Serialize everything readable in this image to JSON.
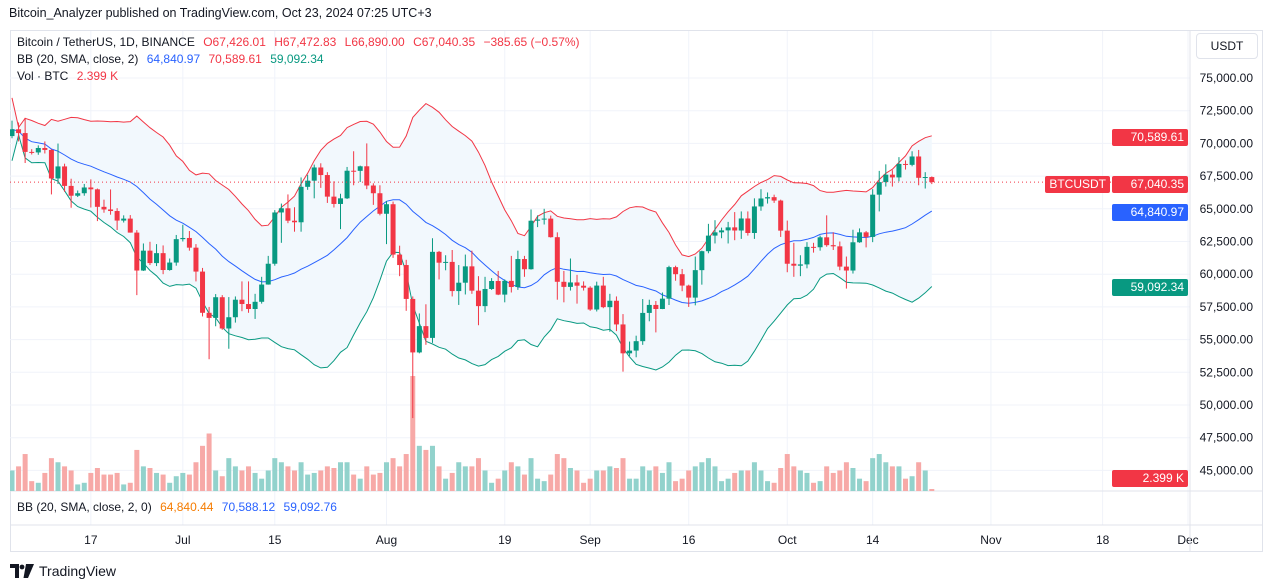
{
  "publisher_line": "Bitcoin_Analyzer published on TradingView.com, Oct 23, 2024 07:25 UTC+3",
  "legend": {
    "symbol": "Bitcoin / TetherUS, 1D, BINANCE",
    "open": "O67,426.01",
    "high": "H67,472.83",
    "low": "L66,890.00",
    "close": "C67,040.35",
    "change": "−385.65 (−0.57%)",
    "bb_label": "BB (20, SMA, close, 2)",
    "bb_basis": "64,840.97",
    "bb_upper": "70,589.61",
    "bb_lower": "59,092.34",
    "vol_label": "Vol · BTC",
    "vol_value": "2.399 K"
  },
  "lower_pane": {
    "label": "BB (20, SMA, close, 2, 0)",
    "v1": "64,840.44",
    "v2": "70,588.12",
    "v3": "59,092.76"
  },
  "currency_button": "USDT",
  "price_labels": {
    "upper": "70,589.61",
    "symbol": "BTCUSDT",
    "last": "67,040.35",
    "basis": "64,840.97",
    "lower": "59,092.34",
    "volume": "2.399 K"
  },
  "footer": {
    "brand": "TradingView"
  },
  "colors": {
    "up": "#089981",
    "down": "#f23645",
    "bb_upper": "#f23645",
    "bb_basis": "#2962ff",
    "bb_lower": "#089981",
    "band_fill": "#f2f8fd"
  },
  "chart_data": {
    "type": "candlestick",
    "symbol": "BTCUSDT",
    "start_date": "2024-06-05",
    "interval": "1D",
    "ylim": [
      44000,
      77500
    ],
    "y_ticks": [
      "75,000.00",
      "72,500.00",
      "70,000.00",
      "67,500.00",
      "65,000.00",
      "62,500.00",
      "60,000.00",
      "57,500.00",
      "55,000.00",
      "52,500.00",
      "50,000.00",
      "47,500.00",
      "45,000.00"
    ],
    "x_ticks": [
      {
        "label": "17",
        "date": "2024-06-17"
      },
      {
        "label": "Jul",
        "date": "2024-07-01"
      },
      {
        "label": "15",
        "date": "2024-07-15"
      },
      {
        "label": "Aug",
        "date": "2024-08-01"
      },
      {
        "label": "19",
        "date": "2024-08-19"
      },
      {
        "label": "Sep",
        "date": "2024-09-01"
      },
      {
        "label": "16",
        "date": "2024-09-16"
      },
      {
        "label": "Oct",
        "date": "2024-10-01"
      },
      {
        "label": "14",
        "date": "2024-10-14"
      },
      {
        "label": "Nov",
        "date": "2024-11-01"
      },
      {
        "label": "18",
        "date": "2024-11-18"
      },
      {
        "label": "Dec",
        "date": "2024-12-01"
      }
    ],
    "ohlc": [
      [
        70560,
        71740,
        70390,
        71080
      ],
      [
        71080,
        71600,
        70150,
        70790
      ],
      [
        70790,
        71950,
        68500,
        69350
      ],
      [
        69350,
        69560,
        69150,
        69310
      ],
      [
        69310,
        69850,
        69130,
        69650
      ],
      [
        69650,
        70150,
        69230,
        69500
      ],
      [
        69500,
        69560,
        66100,
        67320
      ],
      [
        67320,
        69990,
        66900,
        68240
      ],
      [
        68240,
        68450,
        66300,
        66750
      ],
      [
        66750,
        67300,
        65080,
        66000
      ],
      [
        66000,
        66400,
        65900,
        66190
      ],
      [
        66190,
        66900,
        66000,
        66630
      ],
      [
        66630,
        67250,
        65100,
        66490
      ],
      [
        66490,
        66550,
        64060,
        65150
      ],
      [
        65150,
        65700,
        64700,
        64950
      ],
      [
        64950,
        66480,
        64550,
        64830
      ],
      [
        64830,
        65050,
        63380,
        64100
      ],
      [
        64100,
        64500,
        63950,
        64250
      ],
      [
        64250,
        64520,
        63180,
        63180
      ],
      [
        63180,
        63370,
        58400,
        60280
      ],
      [
        60280,
        62350,
        60250,
        61800
      ],
      [
        61800,
        62480,
        60700,
        60850
      ],
      [
        60850,
        62300,
        60620,
        61610
      ],
      [
        61610,
        62200,
        60000,
        60320
      ],
      [
        60320,
        61200,
        60270,
        60890
      ],
      [
        60890,
        63000,
        60650,
        62680
      ],
      [
        62680,
        63780,
        62500,
        62770
      ],
      [
        62770,
        63300,
        61800,
        62030
      ],
      [
        62030,
        62300,
        59450,
        60200
      ],
      [
        60200,
        60480,
        56770,
        57050
      ],
      [
        57050,
        57500,
        53500,
        56660
      ],
      [
        56660,
        58480,
        56020,
        58240
      ],
      [
        58240,
        58400,
        55750,
        55850
      ],
      [
        55850,
        58250,
        54300,
        56710
      ],
      [
        56710,
        58300,
        56300,
        58050
      ],
      [
        58050,
        59450,
        57170,
        57720
      ],
      [
        57720,
        59450,
        57050,
        57340
      ],
      [
        57340,
        58500,
        56580,
        57890
      ],
      [
        57890,
        59800,
        57750,
        59210
      ],
      [
        59210,
        61400,
        59200,
        60800
      ],
      [
        60800,
        64900,
        60650,
        64720
      ],
      [
        64720,
        65400,
        62400,
        65040
      ],
      [
        65040,
        66100,
        63900,
        64090
      ],
      [
        64090,
        65120,
        63250,
        63970
      ],
      [
        63970,
        67400,
        63250,
        66680
      ],
      [
        66680,
        67600,
        66450,
        67150
      ],
      [
        67150,
        68380,
        65800,
        68160
      ],
      [
        68160,
        68480,
        66600,
        67580
      ],
      [
        67580,
        67800,
        65450,
        65930
      ],
      [
        65930,
        67100,
        65100,
        65370
      ],
      [
        65370,
        66150,
        63450,
        65800
      ],
      [
        65800,
        68200,
        65750,
        67910
      ],
      [
        67910,
        69400,
        66800,
        67900
      ],
      [
        67900,
        68300,
        67050,
        68250
      ],
      [
        68250,
        70000,
        66500,
        66780
      ],
      [
        66780,
        66950,
        65300,
        66190
      ],
      [
        66190,
        66800,
        64500,
        64620
      ],
      [
        64620,
        65600,
        62300,
        65350
      ],
      [
        65350,
        65550,
        61250,
        61500
      ],
      [
        61500,
        62180,
        59850,
        60700
      ],
      [
        60700,
        61100,
        57200,
        58110
      ],
      [
        58110,
        58300,
        49000,
        54020
      ],
      [
        54020,
        57000,
        53950,
        56030
      ],
      [
        56030,
        57700,
        54600,
        55130
      ],
      [
        55130,
        62750,
        54750,
        61710
      ],
      [
        61710,
        61780,
        59600,
        60880
      ],
      [
        60880,
        61450,
        60300,
        60940
      ],
      [
        60940,
        61850,
        58300,
        58710
      ],
      [
        58710,
        60700,
        57650,
        59350
      ],
      [
        59350,
        61500,
        58450,
        60600
      ],
      [
        60600,
        61800,
        58500,
        58740
      ],
      [
        58740,
        59850,
        56100,
        57560
      ],
      [
        57560,
        59800,
        57100,
        58870
      ],
      [
        58870,
        59700,
        58800,
        59480
      ],
      [
        59480,
        60250,
        58400,
        58440
      ],
      [
        58440,
        59600,
        57850,
        59490
      ],
      [
        59490,
        61400,
        58600,
        59020
      ],
      [
        59020,
        61800,
        58800,
        61160
      ],
      [
        61160,
        61400,
        59800,
        60380
      ],
      [
        60380,
        64950,
        60350,
        64090
      ],
      [
        64090,
        64500,
        63600,
        64180
      ],
      [
        64180,
        65000,
        63800,
        64250
      ],
      [
        64250,
        64480,
        62800,
        62830
      ],
      [
        62830,
        63200,
        58050,
        59420
      ],
      [
        59420,
        60250,
        57850,
        59030
      ],
      [
        59030,
        61200,
        58750,
        59370
      ],
      [
        59370,
        59950,
        57750,
        59120
      ],
      [
        59120,
        59450,
        58750,
        58970
      ],
      [
        58970,
        59080,
        57200,
        57300
      ],
      [
        57300,
        59430,
        57150,
        59130
      ],
      [
        59130,
        59800,
        57400,
        57480
      ],
      [
        57480,
        58500,
        55600,
        57970
      ],
      [
        57970,
        58300,
        55650,
        56160
      ],
      [
        56160,
        56950,
        52550,
        53950
      ],
      [
        53950,
        54850,
        53750,
        54160
      ],
      [
        54160,
        55300,
        53650,
        54880
      ],
      [
        54880,
        58100,
        54600,
        57040
      ],
      [
        57040,
        58050,
        56400,
        57650
      ],
      [
        57650,
        57950,
        55550,
        57340
      ],
      [
        57340,
        58600,
        57330,
        58130
      ],
      [
        58130,
        60650,
        57650,
        60540
      ],
      [
        60540,
        60650,
        59500,
        60000
      ],
      [
        60000,
        60400,
        58700,
        59130
      ],
      [
        59130,
        59200,
        57500,
        58210
      ],
      [
        58210,
        61350,
        57620,
        60310
      ],
      [
        60310,
        61800,
        59200,
        61760
      ],
      [
        61760,
        63850,
        61600,
        62950
      ],
      [
        62950,
        64130,
        62350,
        63200
      ],
      [
        63200,
        63560,
        62750,
        63350
      ],
      [
        63350,
        64000,
        62350,
        63580
      ],
      [
        63580,
        64750,
        62600,
        63340
      ],
      [
        63340,
        64800,
        62700,
        64260
      ],
      [
        64260,
        64800,
        62950,
        63150
      ],
      [
        63150,
        65800,
        62700,
        65180
      ],
      [
        65180,
        66500,
        64850,
        65790
      ],
      [
        65790,
        66250,
        65400,
        65890
      ],
      [
        65890,
        66080,
        65450,
        65630
      ],
      [
        65630,
        65700,
        62850,
        63330
      ],
      [
        63330,
        64100,
        60150,
        60800
      ],
      [
        60800,
        62400,
        59800,
        60650
      ],
      [
        60650,
        61450,
        59850,
        60750
      ],
      [
        60750,
        62450,
        60450,
        62090
      ],
      [
        62090,
        62400,
        61650,
        62060
      ],
      [
        62060,
        62950,
        61800,
        62820
      ],
      [
        62820,
        64500,
        62100,
        62220
      ],
      [
        62220,
        63200,
        61850,
        62130
      ],
      [
        62130,
        62500,
        60300,
        60580
      ],
      [
        60580,
        61350,
        58900,
        60280
      ],
      [
        60280,
        63400,
        60050,
        62440
      ],
      [
        62440,
        63500,
        62400,
        63200
      ],
      [
        63200,
        63300,
        62050,
        62850
      ],
      [
        62850,
        66500,
        62450,
        66080
      ],
      [
        66080,
        67900,
        64800,
        67040
      ],
      [
        67040,
        68400,
        66700,
        67610
      ],
      [
        67610,
        67950,
        66700,
        67400
      ],
      [
        67400,
        68950,
        67100,
        68430
      ],
      [
        68430,
        68700,
        68000,
        68360
      ],
      [
        68360,
        69400,
        68250,
        69000
      ],
      [
        69000,
        69500,
        66800,
        67370
      ],
      [
        67370,
        67800,
        66550,
        67430
      ],
      [
        67426.01,
        67472.83,
        66890.0,
        67040.35
      ]
    ],
    "volume_kbtc": [
      25,
      30,
      45,
      12,
      10,
      22,
      40,
      35,
      30,
      25,
      8,
      10,
      22,
      28,
      20,
      20,
      22,
      8,
      10,
      50,
      30,
      28,
      22,
      20,
      10,
      18,
      22,
      20,
      35,
      55,
      70,
      25,
      18,
      40,
      30,
      25,
      30,
      22,
      15,
      25,
      40,
      35,
      30,
      25,
      35,
      20,
      22,
      25,
      30,
      28,
      35,
      35,
      20,
      15,
      30,
      20,
      22,
      35,
      40,
      30,
      45,
      140,
      55,
      50,
      55,
      30,
      15,
      22,
      35,
      30,
      30,
      40,
      25,
      10,
      15,
      25,
      35,
      30,
      20,
      40,
      15,
      12,
      20,
      45,
      40,
      28,
      25,
      10,
      15,
      25,
      25,
      30,
      28,
      40,
      15,
      15,
      30,
      25,
      30,
      22,
      35,
      12,
      15,
      25,
      30,
      35,
      40,
      30,
      12,
      15,
      22,
      25,
      25,
      35,
      25,
      12,
      10,
      28,
      45,
      30,
      25,
      22,
      10,
      12,
      30,
      22,
      25,
      35,
      28,
      15,
      12,
      40,
      45,
      35,
      30,
      30,
      15,
      18,
      35,
      25,
      2.399
    ],
    "indicator": "BB (20, SMA, close, 2)",
    "last_price": 67040.35
  }
}
